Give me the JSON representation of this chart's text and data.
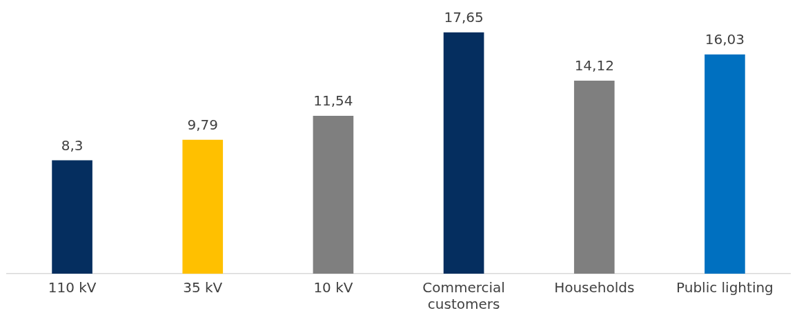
{
  "chart_data": {
    "type": "bar",
    "categories": [
      "110 kV",
      "35 kV",
      "10 kV",
      "Commercial customers",
      "Households",
      "Public lighting"
    ],
    "values": [
      8.3,
      9.79,
      11.54,
      17.65,
      14.12,
      16.03
    ],
    "colors": [
      "#052e5f",
      "#ffc000",
      "#7f7f7f",
      "#052e5f",
      "#7f7f7f",
      "#0070c0"
    ],
    "value_labels": [
      "8,3",
      "9,79",
      "11,54",
      "17,65",
      "14,12",
      "16,03"
    ],
    "grid": false,
    "legend": false
  }
}
